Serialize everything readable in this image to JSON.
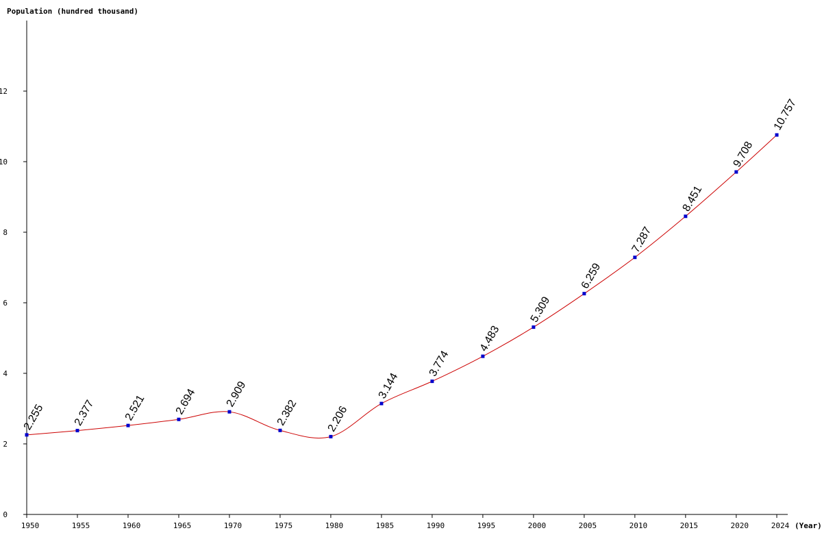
{
  "chart_data": {
    "type": "line",
    "ylabel": "Population (hundred thousand)",
    "xlabel": "(Year)",
    "x": [
      1950,
      1955,
      1960,
      1965,
      1970,
      1975,
      1980,
      1985,
      1990,
      1995,
      2000,
      2005,
      2010,
      2015,
      2020,
      2024
    ],
    "x_tick_labels": [
      "1950",
      "1955",
      "1960",
      "1965",
      "1970",
      "1975",
      "1980",
      "1985",
      "1990",
      "1995",
      "2000",
      "2005",
      "2010",
      "2015",
      "2020",
      "2024"
    ],
    "series": [
      {
        "values": [
          2.255,
          2.377,
          2.521,
          2.694,
          2.909,
          2.382,
          2.206,
          3.144,
          3.774,
          4.483,
          5.309,
          6.259,
          7.287,
          8.451,
          9.708,
          10.757
        ],
        "data_labels": [
          "2.255",
          "2.377",
          "2.521",
          "2.694",
          "2.909",
          "2.382",
          "2.206",
          "3.144",
          "3.774",
          "4.483",
          "5.309",
          "6.259",
          "7.287",
          "8.451",
          "9.708",
          "10.757"
        ]
      }
    ],
    "y_ticks": [
      0,
      2,
      4,
      6,
      8,
      10,
      12
    ],
    "y_tick_labels": [
      "0",
      "2",
      "4",
      "6",
      "8",
      "10",
      "12"
    ],
    "ylim": [
      0,
      14
    ],
    "xlim": [
      1950,
      2024
    ],
    "grid": false,
    "colors": {
      "line": "#cc0000",
      "marker": "#0000cc",
      "axis": "#000000"
    }
  }
}
